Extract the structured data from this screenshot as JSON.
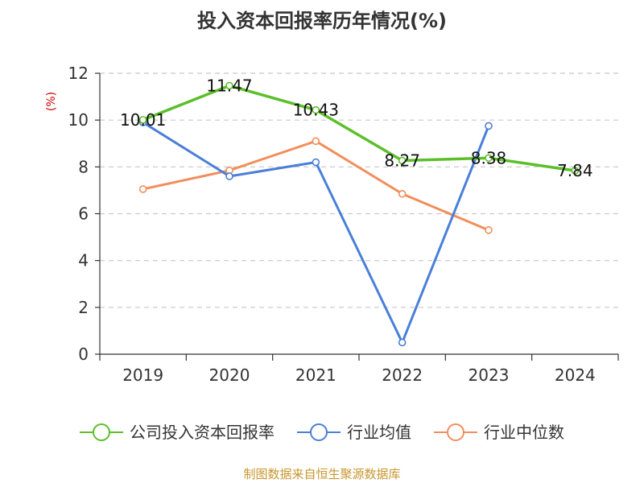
{
  "chart_data": {
    "type": "line",
    "title": "投入资本回报率历年情况(%)",
    "ylabel": "(%)",
    "xlabel": "",
    "categories": [
      "2019",
      "2020",
      "2021",
      "2022",
      "2023",
      "2024"
    ],
    "ylim": [
      0,
      12
    ],
    "yticks": [
      0,
      2,
      4,
      6,
      8,
      10,
      12
    ],
    "grid": "horizontal dashed",
    "legend_position": "bottom",
    "series": [
      {
        "name": "公司投入资本回报率",
        "color": "#5cbf2a",
        "values": [
          10.01,
          11.47,
          10.43,
          8.27,
          8.38,
          7.84
        ],
        "labels": [
          "10.01",
          "11.47",
          "10.43",
          "8.27",
          "8.38",
          "7.84"
        ]
      },
      {
        "name": "行业均值",
        "color": "#4a7fd8",
        "values": [
          9.9,
          7.6,
          8.2,
          0.5,
          9.75,
          null
        ]
      },
      {
        "name": "行业中位数",
        "color": "#f28e5c",
        "values": [
          7.05,
          7.85,
          9.1,
          6.85,
          5.3,
          null
        ]
      }
    ]
  },
  "colors": {
    "ylabel": "#cc0000",
    "axis": "#333333",
    "grid": "#c8c8c8",
    "source": "#c8962e"
  },
  "source_note": "制图数据来自恒生聚源数据库"
}
